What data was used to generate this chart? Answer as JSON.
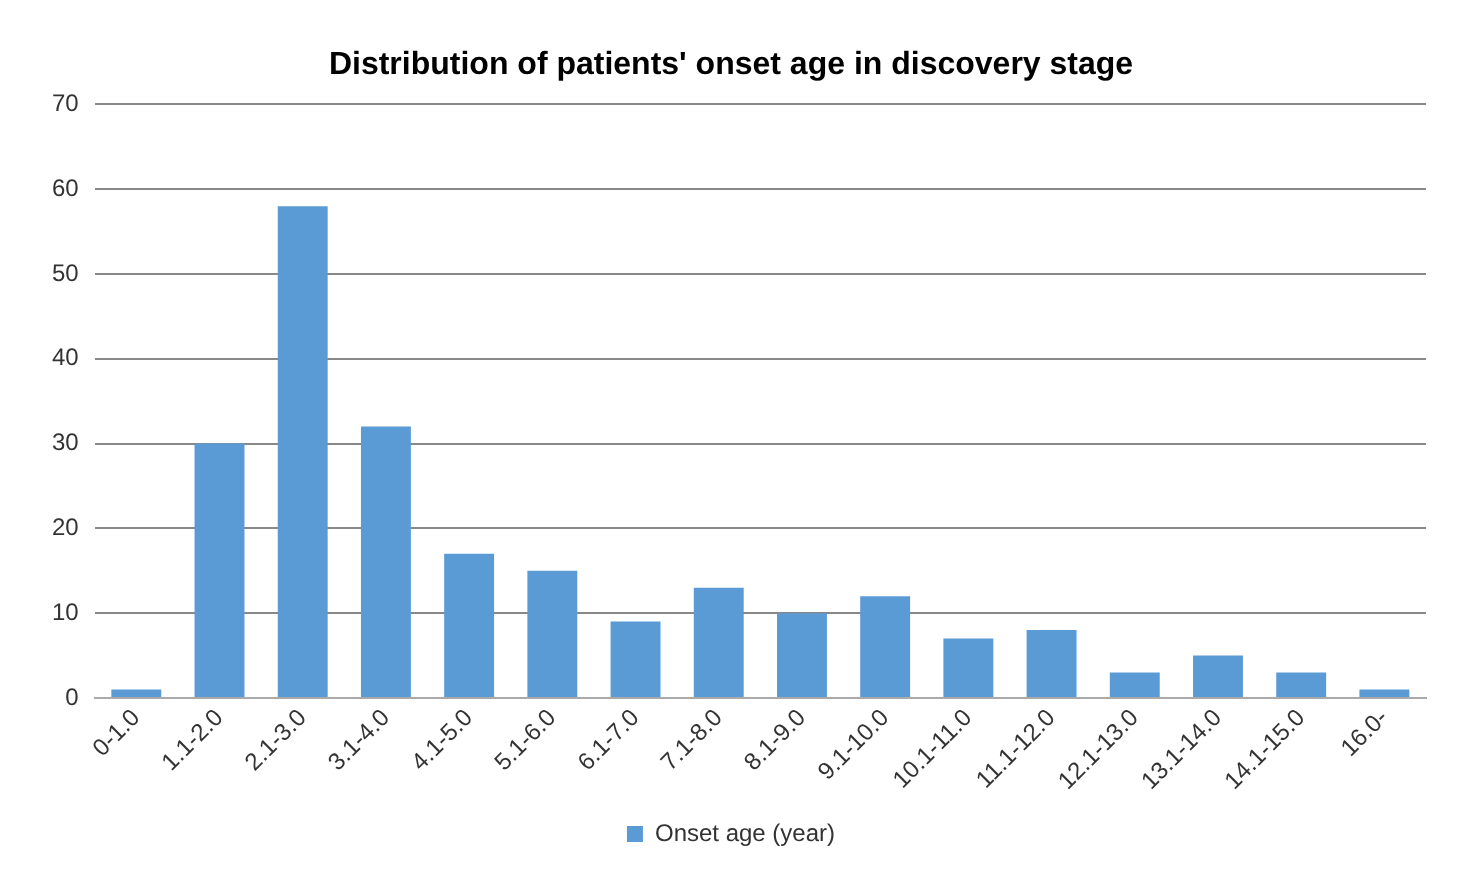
{
  "chart_data": {
    "type": "bar",
    "title": "Distribution of patients' onset age in discovery stage",
    "categories": [
      "0-1.0",
      "1.1-2.0",
      "2.1-3.0",
      "3.1-4.0",
      "4.1-5.0",
      "5.1-6.0",
      "6.1-7.0",
      "7.1-8.0",
      "8.1-9.0",
      "9.1-10.0",
      "10.1-11.0",
      "11.1-12.0",
      "12.1-13.0",
      "13.1-14.0",
      "14.1-15.0",
      "16.0-"
    ],
    "series": [
      {
        "name": "Onset age (year)",
        "color": "#5b9bd5",
        "values": [
          1,
          30,
          58,
          32,
          17,
          15,
          9,
          13,
          10,
          12,
          7,
          8,
          3,
          5,
          3,
          1
        ]
      }
    ],
    "ylim": [
      0,
      70
    ],
    "yticks": [
      0,
      10,
      20,
      30,
      40,
      50,
      60,
      70
    ],
    "grid": "y",
    "legend": "bottom"
  }
}
